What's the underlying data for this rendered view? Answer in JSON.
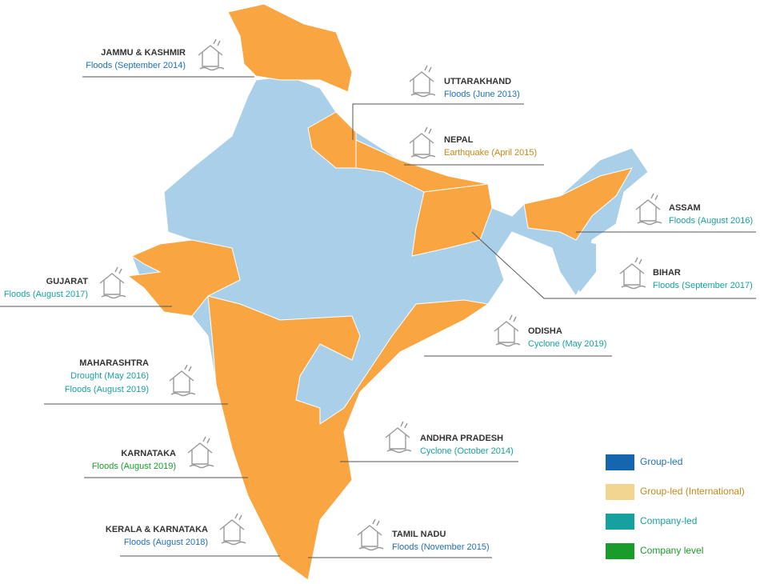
{
  "callouts": [
    {
      "region": "JAMMU & KASHMIR",
      "events": [
        "Floods (September 2014)"
      ],
      "category": 0
    },
    {
      "region": "UTTARAKHAND",
      "events": [
        "Floods (June 2013)"
      ],
      "category": 0
    },
    {
      "region": "NEPAL",
      "events": [
        "Earthquake (April 2015)"
      ],
      "category": 1
    },
    {
      "region": "ASSAM",
      "events": [
        "Floods (August 2016)"
      ],
      "category": 2
    },
    {
      "region": "BIHAR",
      "events": [
        "Floods (September 2017)"
      ],
      "category": 2
    },
    {
      "region": "GUJARAT",
      "events": [
        "Floods (August 2017)"
      ],
      "category": 2
    },
    {
      "region": "ODISHA",
      "events": [
        "Cyclone (May 2019)"
      ],
      "category": 2
    },
    {
      "region": "MAHARASHTRA",
      "events": [
        "Drought (May 2016)",
        "Floods (August 2019)"
      ],
      "category": 2
    },
    {
      "region": "KARNATAKA",
      "events": [
        "Floods (August 2019)"
      ],
      "category": 3
    },
    {
      "region": "ANDHRA PRADESH",
      "events": [
        "Cyclone (October 2014)"
      ],
      "category": 2
    },
    {
      "region": "KERALA & KARNATAKA",
      "events": [
        "Floods (August 2018)"
      ],
      "category": 0
    },
    {
      "region": "TAMIL NADU",
      "events": [
        "Floods (November 2015)"
      ],
      "category": 0
    }
  ],
  "legend": [
    {
      "label": "Group-led",
      "color": "#1565b0",
      "text_color": "#1f6fb5"
    },
    {
      "label": "Group-led (International)",
      "color": "#f0d48f",
      "text_color": "#c08a1a"
    },
    {
      "label": "Company-led",
      "color": "#17a0a0",
      "text_color": "#17a0a0"
    },
    {
      "label": "Company level",
      "color": "#1a9c2a",
      "text_color": "#1a9c2a"
    }
  ]
}
